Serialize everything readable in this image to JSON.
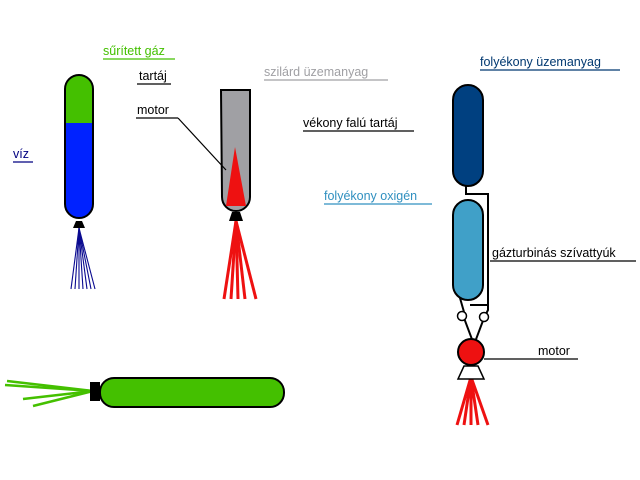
{
  "labels": {
    "compressed_gas": "sűrített gáz",
    "tank": "tartáj",
    "motor": "motor",
    "water": "víz",
    "solid_fuel": "szilárd üzemanyag",
    "liquid_fuel": "folyékony üzemanyag",
    "thin_wall_tank": "vékony falú tartáj",
    "liquid_oxygen": "folyékony oxigén",
    "gas_turbine_pumps": "gázturbinás szívattyúk",
    "motor_2": "motor"
  },
  "colors": {
    "compressed_gas": "#44c000",
    "water": "#0022ff",
    "water_jet": "#0a0a90",
    "solid_fuel_casing": "#a0a0a4",
    "flame": "#ee1111",
    "liquid_fuel": "#004080",
    "liquid_oxygen": "#40a0c8",
    "label_liquid_oxygen": "#3090c0",
    "label_solid_fuel": "#a0a0a4",
    "label_water": "#000080",
    "label_liquid_fuel": "#003870",
    "motor_ball": "#ee1111",
    "nozzle": "#000000",
    "outline": "#000000"
  }
}
